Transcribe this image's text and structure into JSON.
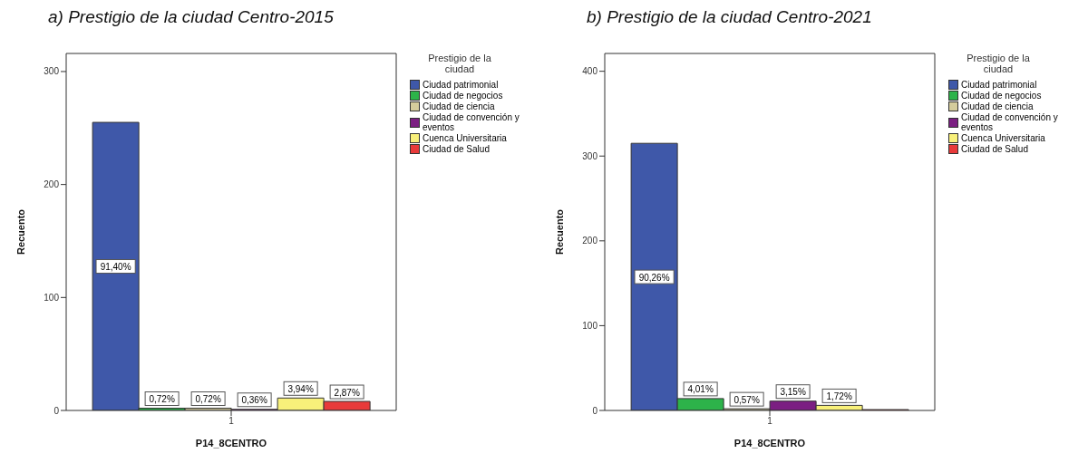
{
  "chart_data": [
    {
      "type": "bar",
      "title": "a) Prestigio de la ciudad Centro-2015",
      "xlabel": "P14_8CENTRO",
      "ylabel": "Recuento",
      "legend_title": "Prestigio de la ciudad",
      "legend": "top right",
      "categories": [
        "1"
      ],
      "ylim": [
        0,
        316
      ],
      "yticks": [
        0,
        100,
        200,
        300
      ],
      "series": [
        {
          "name": "Ciudad patrimonial",
          "color": "#3f58a9",
          "values": [
            255
          ]
        },
        {
          "name": "Ciudad de negocios",
          "color": "#2db34a",
          "values": [
            2
          ]
        },
        {
          "name": "Ciudad de ciencia",
          "color": "#d4cc9c",
          "values": [
            2
          ]
        },
        {
          "name": "Ciudad de convención y eventos",
          "color": "#7b1f82",
          "values": [
            1
          ]
        },
        {
          "name": "Cuenca Universitaria",
          "color": "#f8f07a",
          "values": [
            11
          ]
        },
        {
          "name": "Ciudad  de Salud",
          "color": "#e83a3a",
          "values": [
            8
          ]
        }
      ],
      "annotations": [
        "91,40%",
        "0,72%",
        "0,72%",
        "0,36%",
        "3,94%",
        "2,87%"
      ]
    },
    {
      "type": "bar",
      "title": "b) Prestigio de la ciudad Centro-2021",
      "xlabel": "P14_8CENTRO",
      "ylabel": "Recuento",
      "legend_title": "Prestigio de la ciudad",
      "legend": "top right",
      "categories": [
        "1"
      ],
      "ylim": [
        0,
        421
      ],
      "yticks": [
        0,
        100,
        200,
        300,
        400
      ],
      "series": [
        {
          "name": "Ciudad patrimonial",
          "color": "#3f58a9",
          "values": [
            315
          ]
        },
        {
          "name": "Ciudad de negocios",
          "color": "#2db34a",
          "values": [
            14
          ]
        },
        {
          "name": "Ciudad de ciencia",
          "color": "#d4cc9c",
          "values": [
            2
          ]
        },
        {
          "name": "Ciudad de convención y eventos",
          "color": "#7b1f82",
          "values": [
            11
          ]
        },
        {
          "name": "Cuenca Universitaria",
          "color": "#f8f07a",
          "values": [
            6
          ]
        },
        {
          "name": "Ciudad de Salud",
          "color": "#e83a3a",
          "values": [
            1
          ]
        }
      ],
      "annotations": [
        "90,26%",
        "4,01%",
        "0,57%",
        "3,15%",
        "1,72%"
      ]
    }
  ]
}
